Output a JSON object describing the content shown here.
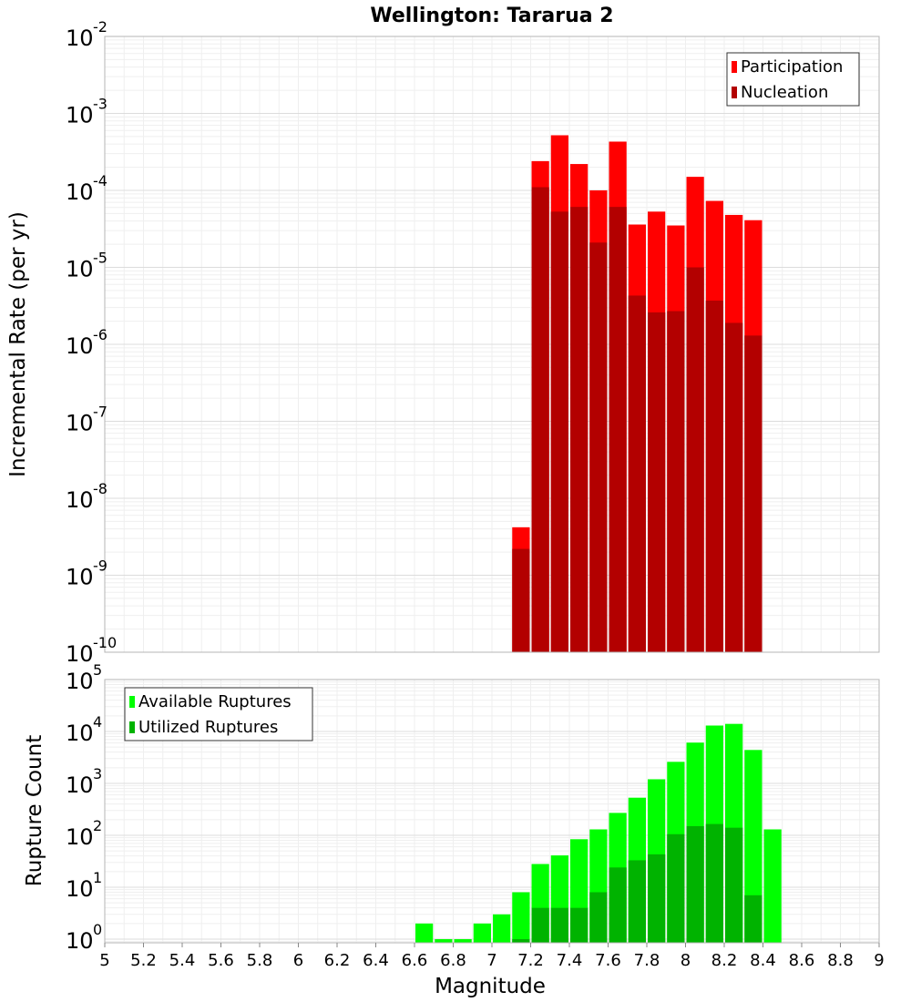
{
  "title": "Wellington: Tararua 2",
  "chart_data": [
    {
      "type": "bar",
      "ylabel": "Incremental Rate (per yr)",
      "yscale": "log",
      "ylim": [
        1e-10,
        0.01
      ],
      "xlim": [
        5,
        9
      ],
      "bin_width": 0.1,
      "grid": true,
      "legend_position": "top-right",
      "x": [
        7.15,
        7.25,
        7.35,
        7.45,
        7.55,
        7.65,
        7.75,
        7.85,
        7.95,
        8.05,
        8.15,
        8.25,
        8.35
      ],
      "series": [
        {
          "name": "Participation",
          "color": "#ff0000",
          "values": [
            4.2e-09,
            0.00024,
            0.00052,
            0.00022,
            0.0001,
            0.00043,
            3.6e-05,
            5.3e-05,
            3.5e-05,
            0.00015,
            7.3e-05,
            4.8e-05,
            4.1e-05
          ]
        },
        {
          "name": "Nucleation",
          "color": "#b30000",
          "values": [
            2.2e-09,
            0.00011,
            5.3e-05,
            6.1e-05,
            2.1e-05,
            6.1e-05,
            4.3e-06,
            2.6e-06,
            2.7e-06,
            1e-05,
            3.7e-06,
            1.9e-06,
            1.3e-06
          ]
        }
      ]
    },
    {
      "type": "bar",
      "ylabel": "Rupture Count",
      "xlabel": "Magnitude",
      "yscale": "log",
      "ylim": [
        0.85,
        100000
      ],
      "xlim": [
        5,
        9
      ],
      "bin_width": 0.1,
      "grid": true,
      "legend_position": "top-left",
      "x": [
        6.65,
        6.75,
        6.85,
        6.95,
        7.05,
        7.15,
        7.25,
        7.35,
        7.45,
        7.55,
        7.65,
        7.75,
        7.85,
        7.95,
        8.05,
        8.15,
        8.25,
        8.35,
        8.45
      ],
      "xticks": [
        "5",
        "5.2",
        "5.4",
        "5.6",
        "5.8",
        "6",
        "6.2",
        "6.4",
        "6.6",
        "6.8",
        "7",
        "7.2",
        "7.4",
        "7.6",
        "7.8",
        "8",
        "8.2",
        "8.4",
        "8.6",
        "8.8",
        "9"
      ],
      "series": [
        {
          "name": "Available Ruptures",
          "color": "#00ff00",
          "values": [
            2,
            1,
            1,
            2,
            3,
            8,
            28,
            41,
            84,
            130,
            270,
            530,
            1200,
            2600,
            6100,
            13000,
            14000,
            4400,
            130
          ]
        },
        {
          "name": "Utilized Ruptures",
          "color": "#00b300",
          "values": [
            0,
            0,
            0,
            0,
            0,
            1,
            4,
            4,
            4,
            8,
            24,
            33,
            43,
            105,
            150,
            165,
            140,
            7,
            0
          ]
        }
      ]
    }
  ]
}
